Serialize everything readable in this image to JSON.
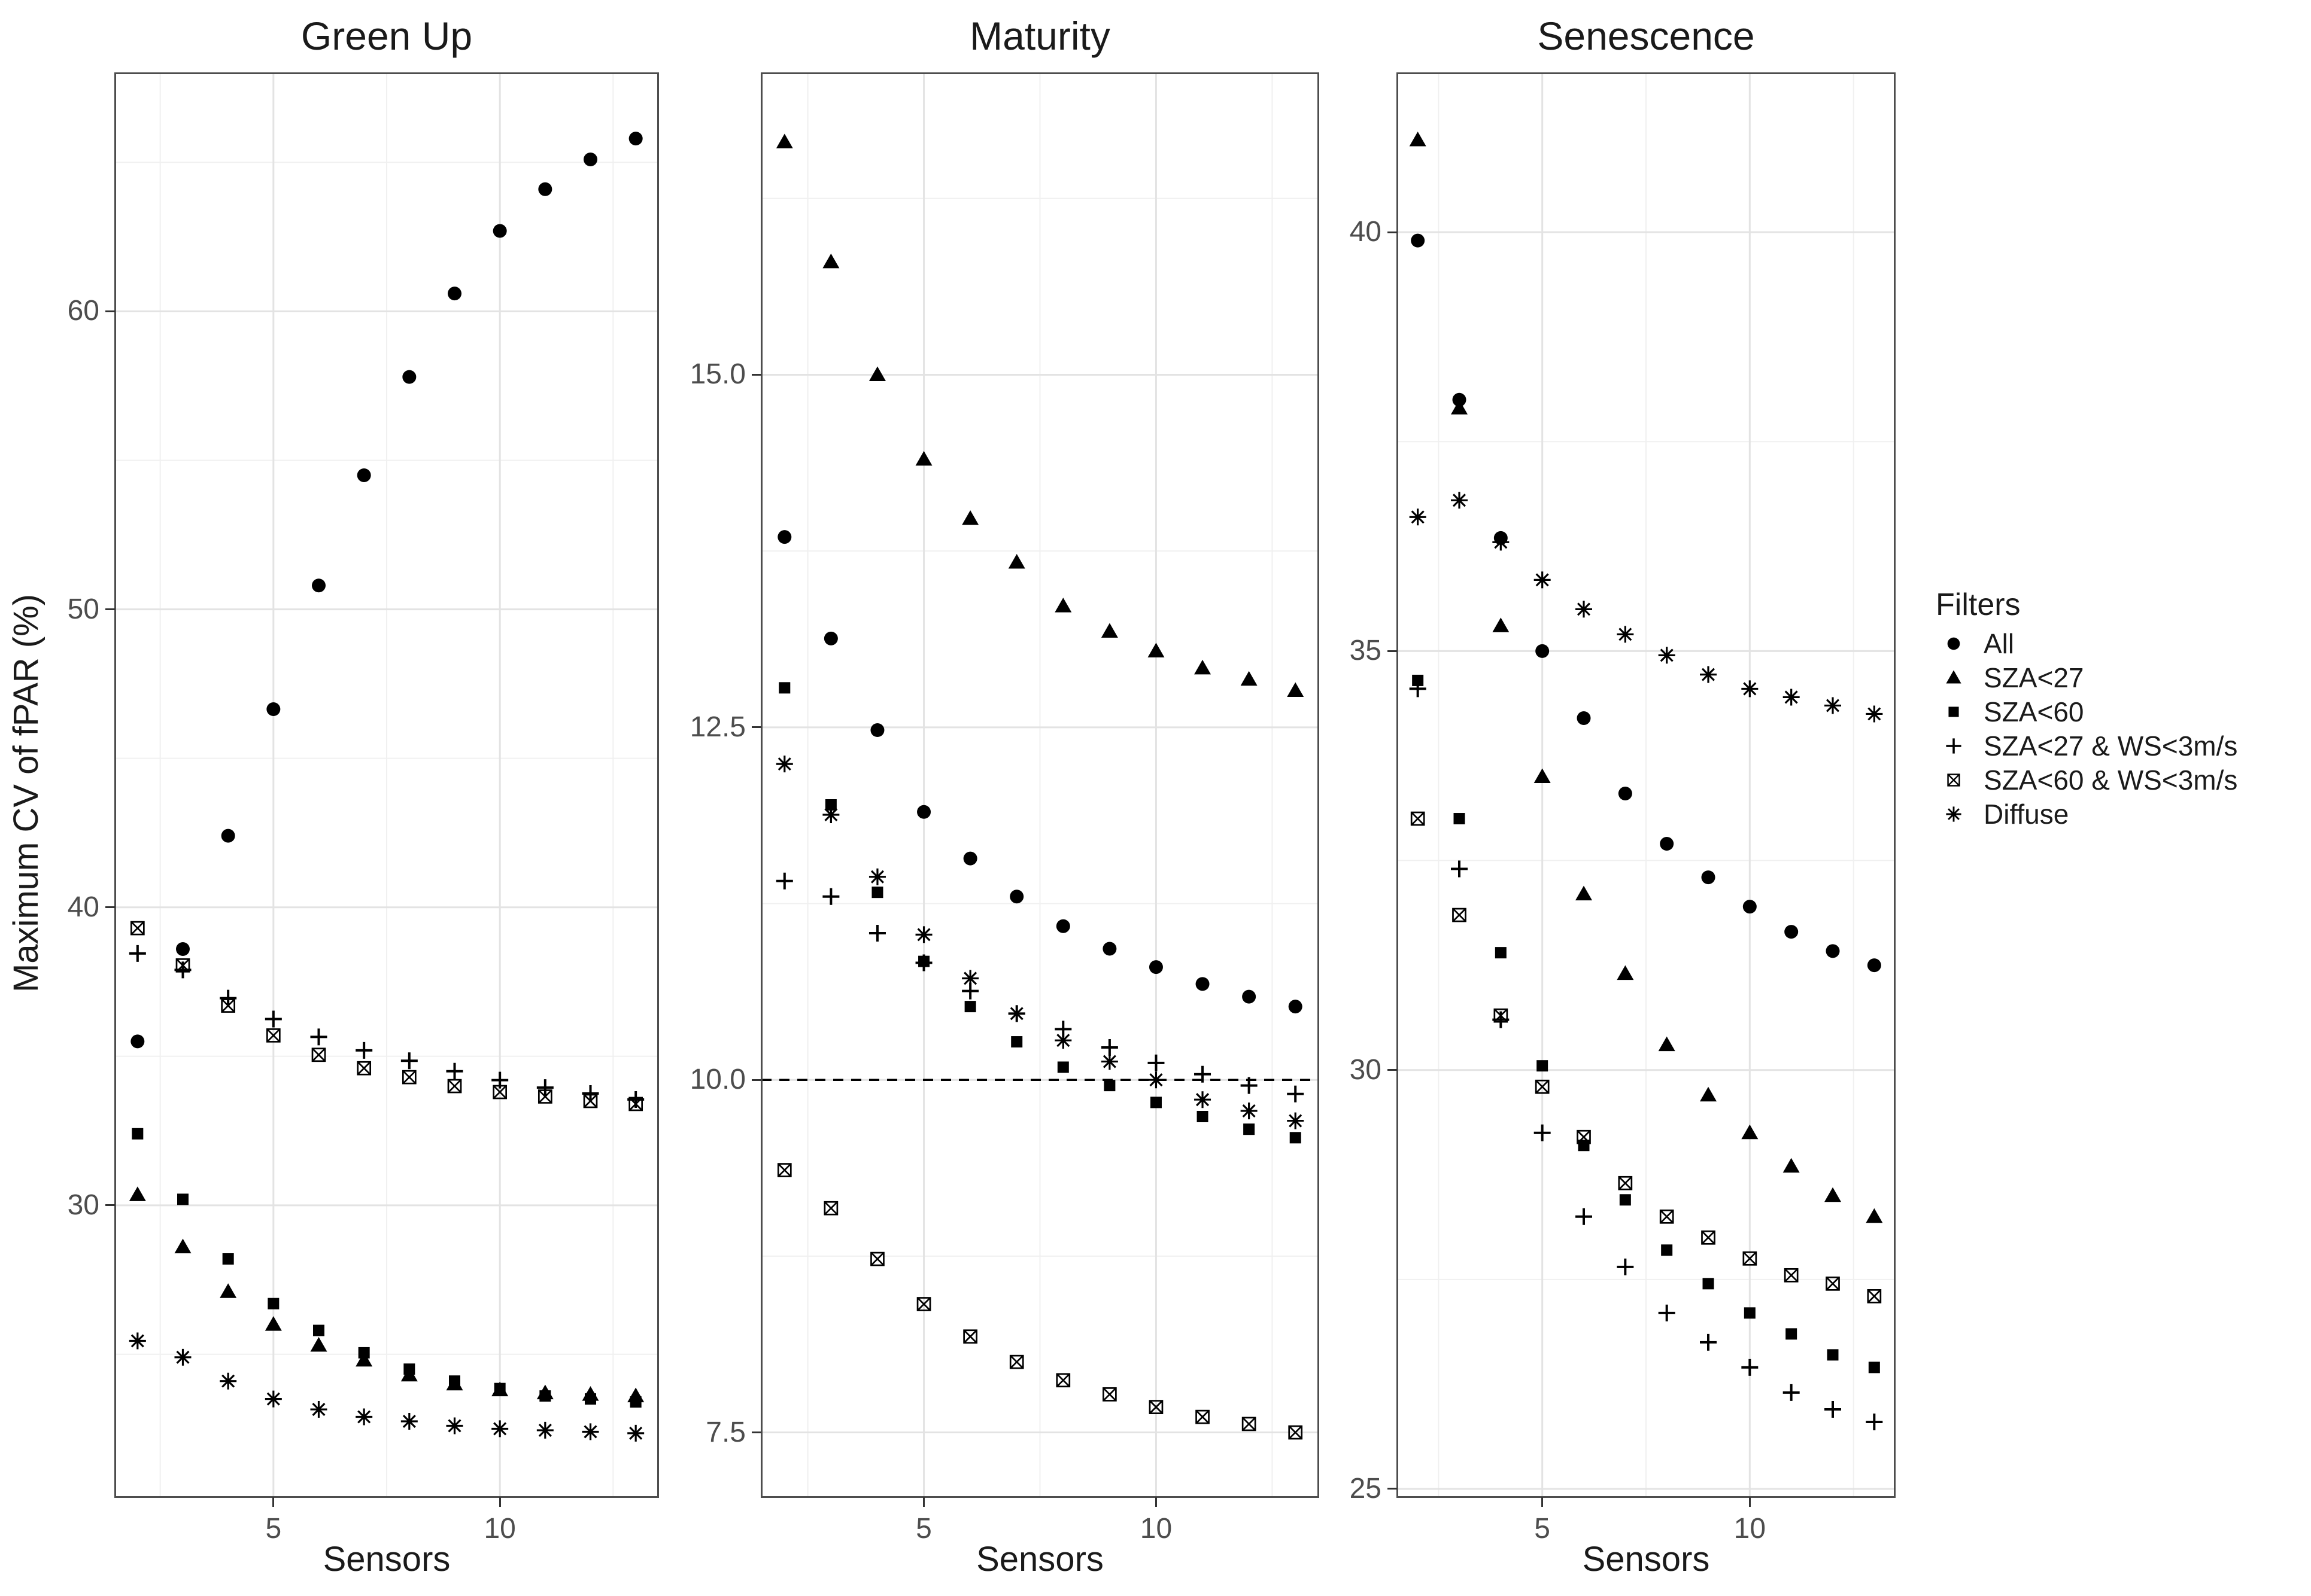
{
  "y_axis_label": "Maximum CV of fPAR (%)",
  "legend": {
    "title": "Filters",
    "items": [
      {
        "label": "All",
        "marker": "circle"
      },
      {
        "label": "SZA<27",
        "marker": "triangle"
      },
      {
        "label": "SZA<60",
        "marker": "square"
      },
      {
        "label": "SZA<27 & WS<3m/s",
        "marker": "plus"
      },
      {
        "label": "SZA<60 & WS<3m/s",
        "marker": "square-cross"
      },
      {
        "label": "Diffuse",
        "marker": "asterisk"
      }
    ],
    "position": "right"
  },
  "colors": {
    "marker": "#000000",
    "grid_major": "#e3e3e3",
    "grid_minor": "#f0f0f0",
    "panel_border": "#4d4d4d",
    "tick_text": "#4d4d4d",
    "title_text": "#1a1a1a",
    "background": "#ffffff"
  },
  "chart_data": [
    {
      "type": "scatter",
      "title": "Green Up",
      "xlabel": "Sensors",
      "ylabel": "Maximum CV of fPAR (%)",
      "x": [
        2,
        3,
        4,
        5,
        6,
        7,
        8,
        9,
        10,
        11,
        12,
        13
      ],
      "xlim": [
        1.5,
        13.5
      ],
      "xticks": [
        5,
        10
      ],
      "xtick_labels": [
        "5",
        "10"
      ],
      "xminor": [
        2.5,
        7.5,
        12.5
      ],
      "ylim": [
        20.2,
        68.0
      ],
      "yticks": [
        30,
        40,
        50,
        60
      ],
      "ytick_labels": [
        "30",
        "40",
        "50",
        "60"
      ],
      "yminor": [
        25,
        35,
        45,
        55,
        65
      ],
      "grid": true,
      "reference_line": null,
      "series": [
        {
          "name": "All",
          "marker": "circle",
          "values": [
            35.5,
            38.6,
            42.4,
            46.65,
            50.8,
            54.5,
            57.8,
            60.6,
            62.7,
            64.1,
            65.1,
            65.8
          ]
        },
        {
          "name": "SZA<27",
          "marker": "triangle",
          "values": [
            30.35,
            28.6,
            27.1,
            26.0,
            25.3,
            24.8,
            24.3,
            24.0,
            23.8,
            23.7,
            23.65,
            23.6
          ]
        },
        {
          "name": "SZA<60",
          "marker": "square",
          "values": [
            32.4,
            30.2,
            28.2,
            26.7,
            25.8,
            25.05,
            24.5,
            24.1,
            23.85,
            23.6,
            23.5,
            23.4
          ]
        },
        {
          "name": "SZA<27 & WS<3m/s",
          "marker": "plus",
          "values": [
            38.45,
            37.9,
            36.95,
            36.25,
            35.65,
            35.2,
            34.85,
            34.5,
            34.2,
            33.95,
            33.75,
            33.55
          ]
        },
        {
          "name": "SZA<60 & WS<3m/s",
          "marker": "square-cross",
          "values": [
            39.3,
            38.05,
            36.7,
            35.7,
            35.05,
            34.6,
            34.3,
            34.0,
            33.8,
            33.65,
            33.5,
            33.4
          ]
        },
        {
          "name": "Diffuse",
          "marker": "asterisk",
          "values": [
            25.45,
            24.9,
            24.1,
            23.5,
            23.15,
            22.9,
            22.75,
            22.6,
            22.5,
            22.45,
            22.4,
            22.35
          ]
        }
      ]
    },
    {
      "type": "scatter",
      "title": "Maturity",
      "xlabel": "Sensors",
      "ylabel": "Maximum CV of fPAR (%)",
      "x": [
        2,
        3,
        4,
        5,
        6,
        7,
        8,
        9,
        10,
        11,
        12,
        13
      ],
      "xlim": [
        1.5,
        13.5
      ],
      "xticks": [
        5,
        10
      ],
      "xtick_labels": [
        "5",
        "10"
      ],
      "xminor": [
        2.5,
        7.5,
        12.5
      ],
      "ylim": [
        7.04,
        17.14
      ],
      "yticks": [
        7.5,
        10.0,
        12.5,
        15.0
      ],
      "ytick_labels": [
        "7.5",
        "10.0",
        "12.5",
        "15.0"
      ],
      "yminor": [
        8.75,
        11.25,
        13.75,
        16.25
      ],
      "grid": true,
      "reference_line": {
        "y": 10.0,
        "style": "dashed",
        "color": "#000000"
      },
      "series": [
        {
          "name": "All",
          "marker": "circle",
          "values": [
            13.85,
            13.13,
            12.48,
            11.9,
            11.57,
            11.3,
            11.09,
            10.93,
            10.8,
            10.68,
            10.59,
            10.52
          ]
        },
        {
          "name": "SZA<27",
          "marker": "triangle",
          "values": [
            16.65,
            15.8,
            15.0,
            14.4,
            13.98,
            13.67,
            13.36,
            13.18,
            13.04,
            12.92,
            12.84,
            12.76
          ]
        },
        {
          "name": "SZA<60",
          "marker": "square",
          "values": [
            12.78,
            11.95,
            11.33,
            10.84,
            10.52,
            10.27,
            10.09,
            9.96,
            9.84,
            9.74,
            9.65,
            9.59
          ]
        },
        {
          "name": "SZA<27 & WS<3m/s",
          "marker": "plus",
          "values": [
            11.41,
            11.3,
            11.04,
            10.83,
            10.63,
            10.47,
            10.36,
            10.23,
            10.12,
            10.04,
            9.96,
            9.9
          ]
        },
        {
          "name": "SZA<60 & WS<3m/s",
          "marker": "square-cross",
          "values": [
            9.36,
            9.09,
            8.73,
            8.41,
            8.18,
            8.0,
            7.87,
            7.77,
            7.68,
            7.61,
            7.56,
            7.5
          ]
        },
        {
          "name": "Diffuse",
          "marker": "asterisk",
          "values": [
            12.24,
            11.88,
            11.44,
            11.03,
            10.72,
            10.47,
            10.28,
            10.13,
            10.0,
            9.86,
            9.78,
            9.71
          ]
        }
      ]
    },
    {
      "type": "scatter",
      "title": "Senescence",
      "xlabel": "Sensors",
      "ylabel": "Maximum CV of fPAR (%)",
      "x": [
        2,
        3,
        4,
        5,
        6,
        7,
        8,
        9,
        10,
        11,
        12,
        13
      ],
      "xlim": [
        1.5,
        13.5
      ],
      "xticks": [
        5,
        10
      ],
      "xtick_labels": [
        "5",
        "10"
      ],
      "xminor": [
        2.5,
        7.5,
        12.5
      ],
      "ylim": [
        24.9,
        41.9
      ],
      "yticks": [
        25,
        30,
        35,
        40
      ],
      "ytick_labels": [
        "25",
        "30",
        "35",
        "40"
      ],
      "yminor": [
        27.5,
        32.5,
        37.5
      ],
      "grid": true,
      "reference_line": null,
      "series": [
        {
          "name": "All",
          "marker": "circle",
          "values": [
            39.9,
            38.0,
            36.35,
            35.0,
            34.2,
            33.3,
            32.7,
            32.3,
            31.95,
            31.65,
            31.42,
            31.25
          ]
        },
        {
          "name": "SZA<27",
          "marker": "triangle",
          "values": [
            41.1,
            37.9,
            35.3,
            33.5,
            32.1,
            31.15,
            30.3,
            29.7,
            29.25,
            28.85,
            28.5,
            28.25
          ]
        },
        {
          "name": "SZA<60",
          "marker": "square",
          "values": [
            34.65,
            33.0,
            31.4,
            30.05,
            29.1,
            28.45,
            27.85,
            27.45,
            27.1,
            26.85,
            26.6,
            26.45
          ]
        },
        {
          "name": "SZA<27 & WS<3m/s",
          "marker": "plus",
          "values": [
            34.55,
            32.4,
            30.6,
            29.25,
            28.25,
            27.65,
            27.1,
            26.75,
            26.45,
            26.15,
            25.95,
            25.8
          ]
        },
        {
          "name": "SZA<60 & WS<3m/s",
          "marker": "square-cross",
          "values": [
            33.0,
            31.85,
            30.65,
            29.8,
            29.2,
            28.65,
            28.25,
            28.0,
            27.75,
            27.55,
            27.45,
            27.3
          ]
        },
        {
          "name": "Diffuse",
          "marker": "asterisk",
          "values": [
            36.6,
            36.8,
            36.3,
            35.85,
            35.5,
            35.2,
            34.95,
            34.72,
            34.55,
            34.45,
            34.35,
            34.25
          ]
        }
      ]
    }
  ]
}
